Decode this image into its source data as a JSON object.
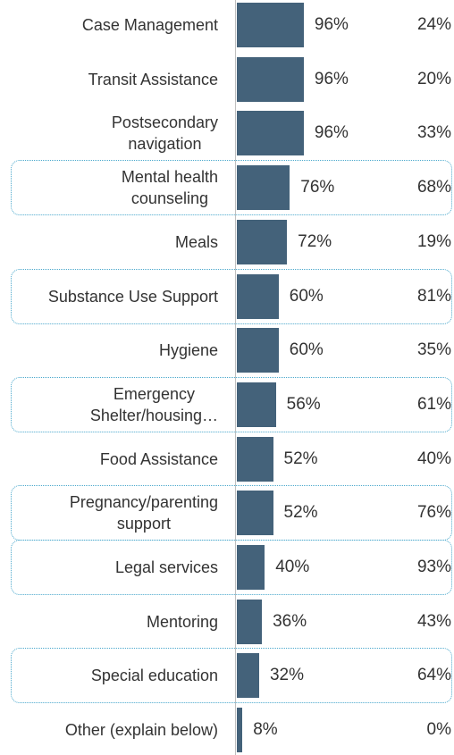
{
  "chart_data": {
    "type": "bar",
    "orientation": "horizontal",
    "categories": [
      "Case Management",
      "Transit Assistance",
      "Postsecondary\nnavigation",
      "Mental health\ncounseling",
      "Meals",
      "Substance Use Support",
      "Hygiene",
      "Emergency\nShelter/housing…",
      "Food Assistance",
      "Pregnancy/parenting\nsupport",
      "Legal services",
      "Mentoring",
      "Special education",
      "Other (explain below)"
    ],
    "values": [
      96,
      96,
      96,
      76,
      72,
      60,
      60,
      56,
      52,
      52,
      40,
      36,
      32,
      8
    ],
    "value_labels": [
      "96%",
      "96%",
      "96%",
      "76%",
      "72%",
      "60%",
      "60%",
      "56%",
      "52%",
      "52%",
      "40%",
      "36%",
      "32%",
      "8%"
    ],
    "comparison_values": [
      24,
      20,
      33,
      68,
      19,
      81,
      35,
      61,
      40,
      76,
      93,
      43,
      64,
      0
    ],
    "comparison_labels": [
      "24%",
      "20%",
      "33%",
      "68%",
      "19%",
      "81%",
      "35%",
      "61%",
      "40%",
      "76%",
      "93%",
      "43%",
      "64%",
      "0%"
    ],
    "highlighted": [
      3,
      5,
      7,
      9,
      10,
      12
    ],
    "color": "#44627a",
    "highlight_color": "#4aa8cc",
    "xlim": [
      0,
      100
    ]
  }
}
